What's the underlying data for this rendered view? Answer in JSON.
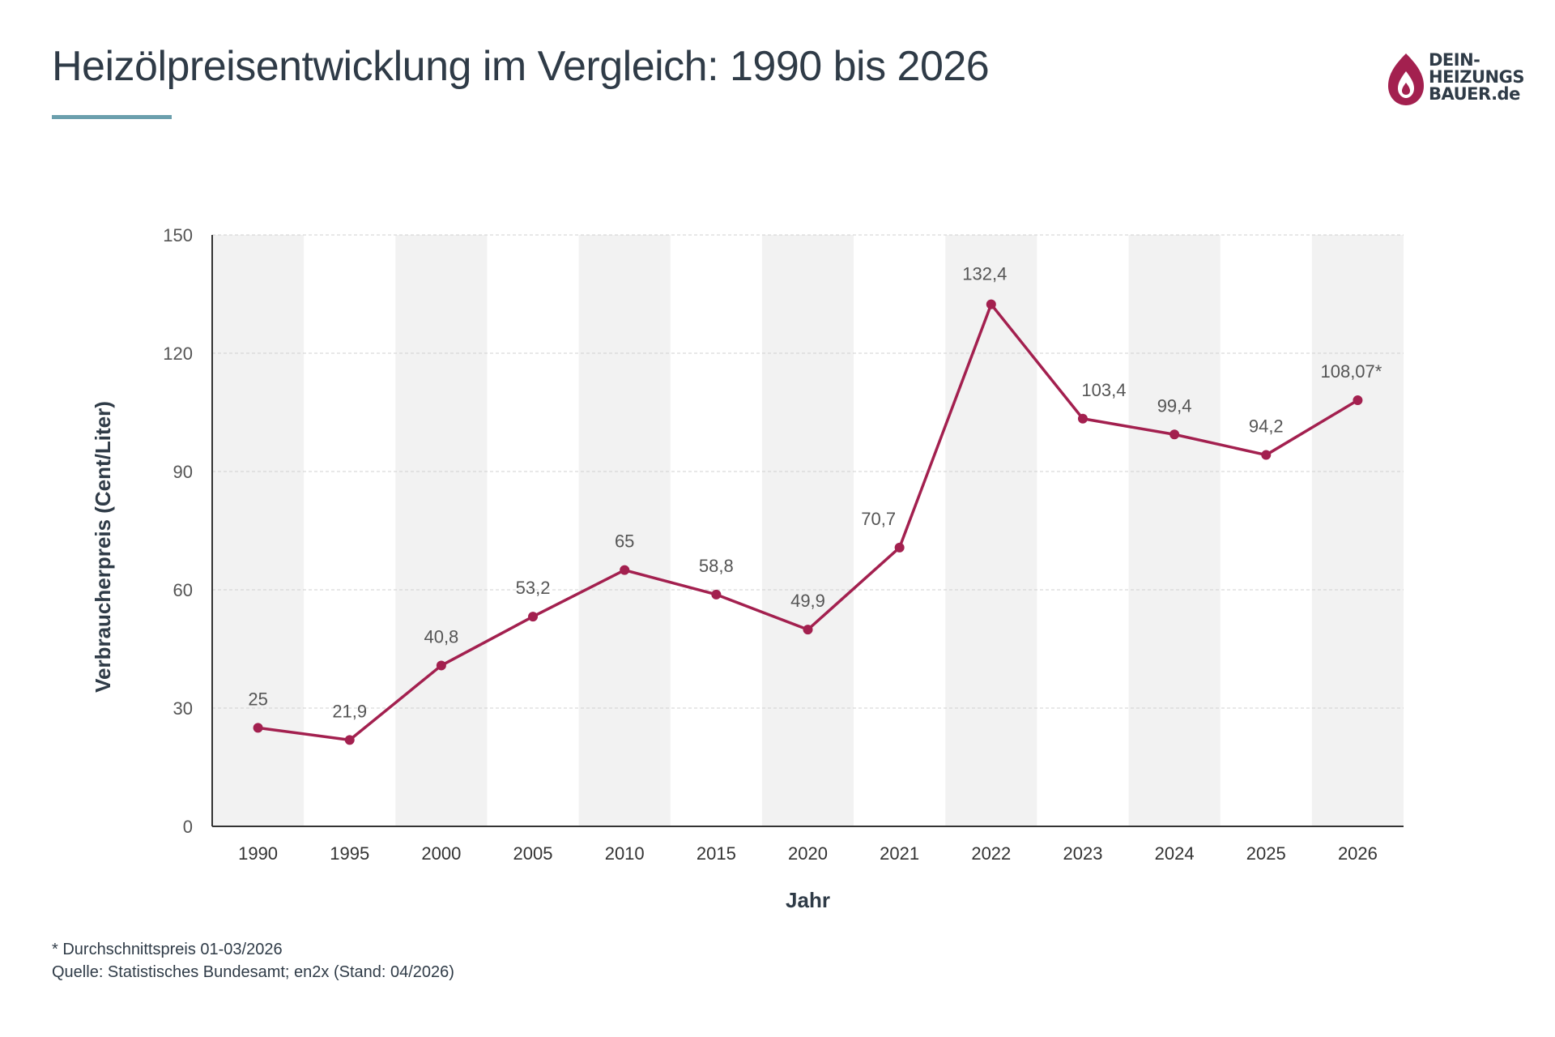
{
  "header": {
    "title": "Heizölpreisentwicklung im Vergleich: 1990 bis 2026"
  },
  "logo": {
    "line1": "DEIN-",
    "line2": "HEIZUNGS",
    "line3": "BAUER.de",
    "icon": "flame-drop-icon"
  },
  "footnote": {
    "note": "* Durchschnittspreis 01-03/2026",
    "source": "Quelle: Statistisches Bundesamt; en2x (Stand: 04/2026)"
  },
  "colors": {
    "line": "#a3204f",
    "band": "#f2f2f2",
    "text": "#2f3b47",
    "accent": "#6b9fad"
  },
  "chart_data": {
    "type": "line",
    "xlabel": "Jahr",
    "ylabel": "Verbraucherpreis (Cent/Liter)",
    "categories": [
      "1990",
      "1995",
      "2000",
      "2005",
      "2010",
      "2015",
      "2020",
      "2021",
      "2022",
      "2023",
      "2024",
      "2025",
      "2026"
    ],
    "values": [
      25,
      21.9,
      40.8,
      53.2,
      65,
      58.8,
      49.9,
      70.7,
      132.4,
      103.4,
      99.4,
      94.2,
      108.07
    ],
    "data_labels": [
      "25",
      "21,9",
      "40,8",
      "53,2",
      "65",
      "58,8",
      "49,9",
      "70,7",
      "132,4",
      "103,4",
      "99,4",
      "94,2",
      "108,07*"
    ],
    "ylim": [
      0,
      150
    ],
    "yticks": [
      0,
      30,
      60,
      90,
      120,
      150
    ],
    "grid": true,
    "alternating_bands": true
  }
}
